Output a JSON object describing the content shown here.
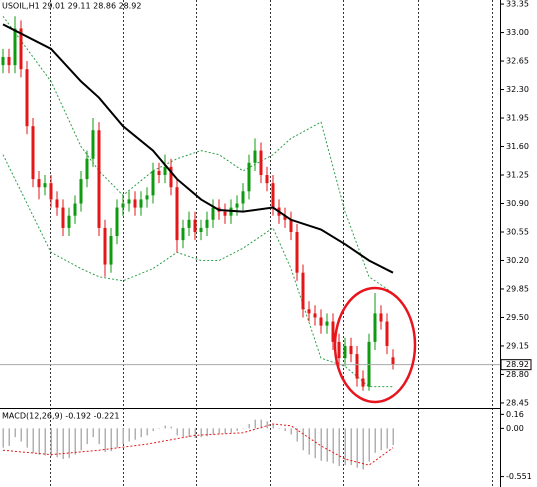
{
  "chart_data": [
    {
      "type": "candlestick",
      "title": "USOIL,H1 29.01 29.11 28.86 28.92",
      "open": [
        32.6,
        32.7,
        32.6,
        33.05,
        32.55,
        31.85,
        31.2,
        31.1,
        31.15,
        30.95,
        30.85,
        30.6,
        30.75,
        30.9,
        31.2,
        31.45,
        31.8,
        30.6,
        30.15,
        30.5,
        30.85,
        30.9,
        30.95,
        30.85,
        30.95,
        31.0,
        31.3,
        31.25,
        31.35,
        31.1,
        30.45,
        30.6,
        30.7,
        30.55,
        30.6,
        30.7,
        30.85,
        30.8,
        30.75,
        30.85,
        30.9,
        31.05,
        31.4,
        31.55,
        31.25,
        31.15,
        30.85,
        30.75,
        30.7,
        30.55,
        30.05,
        29.6,
        29.55,
        29.5,
        29.4,
        29.45,
        29.2,
        29.0,
        29.15,
        29.05,
        28.75,
        28.65,
        29.2,
        29.55,
        29.45,
        29.01
      ],
      "high": [
        32.8,
        32.8,
        33.2,
        33.15,
        32.65,
        31.95,
        31.3,
        31.25,
        31.25,
        31.05,
        30.95,
        30.85,
        31.0,
        31.3,
        31.55,
        31.95,
        31.9,
        30.7,
        30.6,
        30.95,
        31.0,
        31.05,
        31.05,
        31.05,
        31.1,
        31.4,
        31.4,
        31.5,
        31.45,
        31.2,
        30.7,
        30.8,
        30.8,
        30.7,
        30.8,
        30.95,
        30.95,
        30.9,
        30.95,
        31.0,
        31.15,
        31.5,
        31.7,
        31.65,
        31.35,
        31.25,
        30.95,
        30.85,
        30.8,
        30.65,
        30.15,
        29.7,
        29.65,
        29.6,
        29.55,
        29.55,
        29.3,
        29.25,
        29.25,
        29.15,
        28.85,
        29.3,
        29.8,
        29.65,
        29.55,
        29.11
      ],
      "low": [
        32.5,
        32.5,
        32.5,
        32.45,
        31.75,
        31.1,
        30.95,
        31.0,
        30.85,
        30.75,
        30.5,
        30.5,
        30.65,
        30.8,
        31.1,
        31.35,
        30.5,
        30.0,
        30.05,
        30.4,
        30.75,
        30.8,
        30.75,
        30.75,
        30.85,
        30.9,
        31.15,
        31.15,
        31.0,
        30.3,
        30.35,
        30.5,
        30.45,
        30.45,
        30.5,
        30.6,
        30.7,
        30.65,
        30.65,
        30.75,
        30.8,
        30.95,
        31.3,
        31.15,
        31.05,
        30.75,
        30.65,
        30.6,
        30.45,
        29.95,
        29.5,
        29.45,
        29.4,
        29.3,
        29.3,
        29.1,
        28.9,
        28.9,
        28.95,
        28.65,
        28.6,
        28.6,
        29.1,
        29.35,
        29.05,
        28.86
      ],
      "close": [
        32.7,
        32.6,
        33.05,
        32.55,
        31.85,
        31.2,
        31.1,
        31.15,
        30.95,
        30.85,
        30.6,
        30.75,
        30.9,
        31.2,
        31.45,
        31.8,
        30.6,
        30.15,
        30.5,
        30.85,
        30.9,
        30.95,
        30.85,
        30.95,
        31.0,
        31.3,
        31.25,
        31.35,
        31.1,
        30.45,
        30.6,
        30.7,
        30.55,
        30.6,
        30.7,
        30.85,
        30.8,
        30.75,
        30.85,
        30.9,
        31.05,
        31.4,
        31.55,
        31.25,
        31.15,
        30.85,
        30.75,
        30.7,
        30.55,
        30.05,
        29.6,
        29.55,
        29.5,
        29.4,
        29.45,
        29.2,
        29.0,
        29.15,
        29.05,
        28.75,
        28.65,
        29.2,
        29.55,
        29.45,
        29.15,
        28.92
      ],
      "up_color": "#0f9a0f",
      "down_color": "#e31717",
      "ma": {
        "color": "#000000",
        "index": [
          0,
          8,
          13,
          16,
          20,
          25,
          29,
          33,
          36,
          40,
          45,
          48,
          53,
          57,
          61,
          65
        ],
        "values": [
          33.1,
          32.8,
          32.4,
          32.2,
          31.85,
          31.55,
          31.2,
          30.95,
          30.82,
          30.8,
          30.85,
          30.7,
          30.58,
          30.4,
          30.2,
          30.05
        ]
      },
      "bands": {
        "color": "#2e9e4a",
        "index": [
          0,
          8,
          13,
          16,
          20,
          25,
          29,
          33,
          36,
          40,
          45,
          48,
          53,
          57,
          61,
          65
        ],
        "upper": [
          33.2,
          32.4,
          31.6,
          31.3,
          31.0,
          31.3,
          31.45,
          31.55,
          31.5,
          31.3,
          31.5,
          31.7,
          31.9,
          30.8,
          30.0,
          29.8
        ],
        "lower": [
          31.5,
          30.3,
          30.1,
          30.0,
          29.95,
          30.1,
          30.3,
          30.2,
          30.2,
          30.35,
          30.6,
          30.1,
          29.0,
          28.9,
          28.65,
          28.65
        ]
      },
      "last": 28.92,
      "ylim": [
        28.4,
        33.4
      ],
      "yticks": [
        33.35,
        {
          "value": 33.0,
          "label": "33.00"
        },
        32.65,
        {
          "value": 32.3,
          "label": "32.30"
        },
        31.95,
        {
          "value": 31.6,
          "label": "31.60"
        },
        31.25,
        {
          "value": 30.9,
          "label": "30.90"
        },
        30.55,
        {
          "value": 30.2,
          "label": "30.20"
        },
        29.85,
        {
          "value": 29.5,
          "label": "29.50"
        },
        29.15,
        {
          "value": 28.8,
          "label": "28.80"
        },
        28.45
      ]
    },
    {
      "type": "bar",
      "title": "MACD(12,26,9) -0.192 -0.221",
      "color": "#b0b0b0",
      "values": [
        -0.22,
        -0.2,
        -0.1,
        -0.15,
        -0.22,
        -0.28,
        -0.3,
        -0.31,
        -0.32,
        -0.33,
        -0.35,
        -0.34,
        -0.3,
        -0.25,
        -0.18,
        -0.1,
        -0.18,
        -0.27,
        -0.26,
        -0.22,
        -0.18,
        -0.15,
        -0.13,
        -0.1,
        -0.08,
        -0.03,
        0.0,
        0.03,
        0.02,
        -0.08,
        -0.1,
        -0.1,
        -0.11,
        -0.1,
        -0.09,
        -0.07,
        -0.06,
        -0.06,
        -0.05,
        -0.03,
        0.0,
        0.05,
        0.1,
        0.1,
        0.08,
        0.04,
        0.0,
        -0.03,
        -0.07,
        -0.15,
        -0.25,
        -0.3,
        -0.34,
        -0.37,
        -0.38,
        -0.4,
        -0.43,
        -0.42,
        -0.42,
        -0.45,
        -0.47,
        -0.38,
        -0.28,
        -0.25,
        -0.23,
        -0.192
      ],
      "signal": {
        "color": "#e31717",
        "index": [
          0,
          8,
          16,
          24,
          32,
          40,
          45,
          48,
          53,
          57,
          61,
          65
        ],
        "values": [
          -0.25,
          -0.3,
          -0.25,
          -0.18,
          -0.08,
          -0.05,
          0.05,
          0.03,
          -0.2,
          -0.35,
          -0.42,
          -0.221
        ]
      },
      "ylim": [
        -0.67,
        0.21
      ],
      "yticks": [
        0.16,
        {
          "value": 0,
          "label": "0.00"
        },
        {
          "value": -0.551,
          "label": "-0.551"
        }
      ]
    }
  ]
}
